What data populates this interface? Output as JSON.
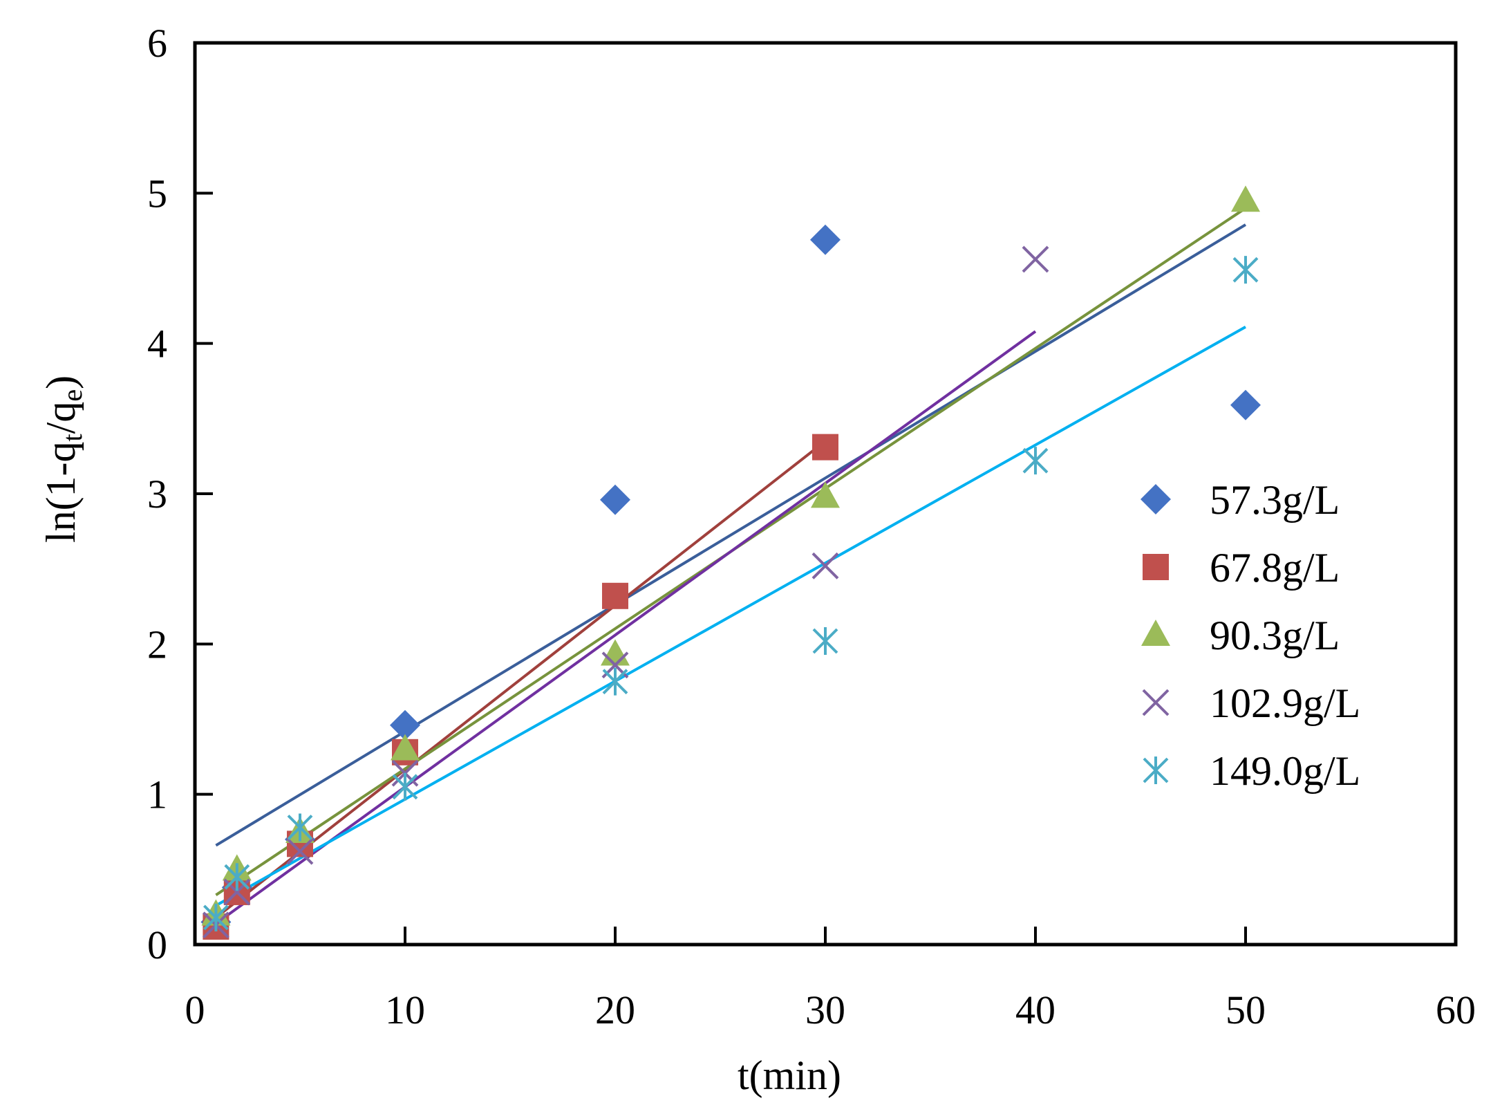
{
  "chart_data": {
    "type": "scatter",
    "title": "",
    "xlabel": "t(min)",
    "ylabel": "ln(1-qt/qe)",
    "ylabel_parts": {
      "prefix": "ln(1-q",
      "sub1": "t",
      "mid": "/q",
      "sub2": "e",
      "suffix": ")"
    },
    "xlim": [
      0,
      60
    ],
    "ylim": [
      0,
      6
    ],
    "xticks": [
      0,
      10,
      20,
      30,
      40,
      50,
      60
    ],
    "yticks": [
      0,
      1,
      2,
      3,
      4,
      5,
      6
    ],
    "xtick_labels": [
      "0",
      "10",
      "20",
      "30",
      "40",
      "50",
      "60"
    ],
    "ytick_labels": [
      "0",
      "1",
      "2",
      "3",
      "4",
      "5",
      "6"
    ],
    "grid": false,
    "legend_position": "right",
    "series": [
      {
        "name": "57.3g/L",
        "marker": "diamond",
        "color": "#4472C4",
        "line_color": "#3A5E9A",
        "x": [
          1,
          2,
          5,
          10,
          20,
          30,
          50
        ],
        "y": [
          0.15,
          0.38,
          0.7,
          1.46,
          2.96,
          4.69,
          3.59
        ],
        "fit": {
          "x": [
            1,
            50
          ],
          "y": [
            0.66,
            4.79
          ]
        }
      },
      {
        "name": "67.8g/L",
        "marker": "square",
        "color": "#C0504D",
        "line_color": "#A0403C",
        "x": [
          1,
          2,
          5,
          10,
          20,
          30
        ],
        "y": [
          0.12,
          0.35,
          0.67,
          1.28,
          2.32,
          3.31
        ],
        "fit": {
          "x": [
            1,
            30
          ],
          "y": [
            0.18,
            3.35
          ]
        }
      },
      {
        "name": "90.3g/L",
        "marker": "triangle",
        "color": "#9BBB59",
        "line_color": "#77933C",
        "x": [
          1,
          2,
          5,
          10,
          20,
          30,
          50
        ],
        "y": [
          0.2,
          0.5,
          0.75,
          1.3,
          1.93,
          2.98,
          4.95
        ],
        "fit": {
          "x": [
            1,
            50
          ],
          "y": [
            0.33,
            4.9
          ]
        }
      },
      {
        "name": "102.9g/L",
        "marker": "x",
        "color": "#8064A2",
        "line_color": "#7030A0",
        "x": [
          1,
          2,
          5,
          10,
          20,
          30,
          40
        ],
        "y": [
          0.13,
          0.35,
          0.62,
          1.14,
          1.86,
          2.52,
          4.56
        ],
        "fit": {
          "x": [
            1,
            40
          ],
          "y": [
            0.14,
            4.08
          ]
        }
      },
      {
        "name": "149.0g/L",
        "marker": "asterisk",
        "color": "#4BACC6",
        "line_color": "#00B0F0",
        "x": [
          1,
          2,
          5,
          10,
          20,
          30,
          40,
          50
        ],
        "y": [
          0.18,
          0.45,
          0.78,
          1.05,
          1.75,
          2.02,
          3.22,
          4.49
        ],
        "fit": {
          "x": [
            1,
            50
          ],
          "y": [
            0.26,
            4.11
          ]
        }
      }
    ]
  }
}
